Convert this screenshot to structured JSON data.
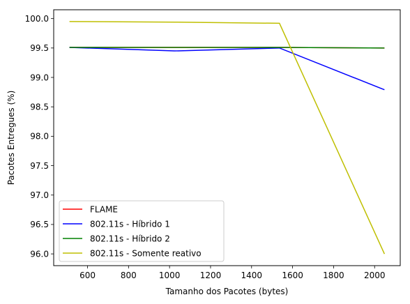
{
  "chart_data": {
    "type": "line",
    "title": "",
    "xlabel": "Tamanho dos Pacotes (bytes)",
    "ylabel": "Pacotes Entregues (%)",
    "xlim": [
      435,
      2125
    ],
    "ylim": [
      95.8,
      100.15
    ],
    "xticks": [
      600,
      800,
      1000,
      1200,
      1400,
      1600,
      1800,
      2000
    ],
    "yticks": [
      "96.0",
      "96.5",
      "97.0",
      "97.5",
      "98.0",
      "98.5",
      "99.0",
      "99.5",
      "100.0"
    ],
    "grid": false,
    "legend_position": "lower-left",
    "series": [
      {
        "name": "FLAME",
        "color": "#ff0000",
        "x": [
          512,
          1024,
          1536,
          2048
        ],
        "y": [
          99.51,
          99.51,
          99.51,
          99.5
        ]
      },
      {
        "name": "802.11s - Híbrido 1",
        "color": "#0000ff",
        "x": [
          512,
          1024,
          1536,
          2048
        ],
        "y": [
          99.51,
          99.45,
          99.5,
          98.79
        ]
      },
      {
        "name": "802.11s - Híbrido 2",
        "color": "#008000",
        "x": [
          512,
          1024,
          1536,
          2048
        ],
        "y": [
          99.51,
          99.51,
          99.51,
          99.5
        ]
      },
      {
        "name": "802.11s - Somente reativo",
        "color": "#bfbf00",
        "x": [
          512,
          1024,
          1536,
          2048
        ],
        "y": [
          99.95,
          99.94,
          99.92,
          96.0
        ]
      }
    ]
  }
}
